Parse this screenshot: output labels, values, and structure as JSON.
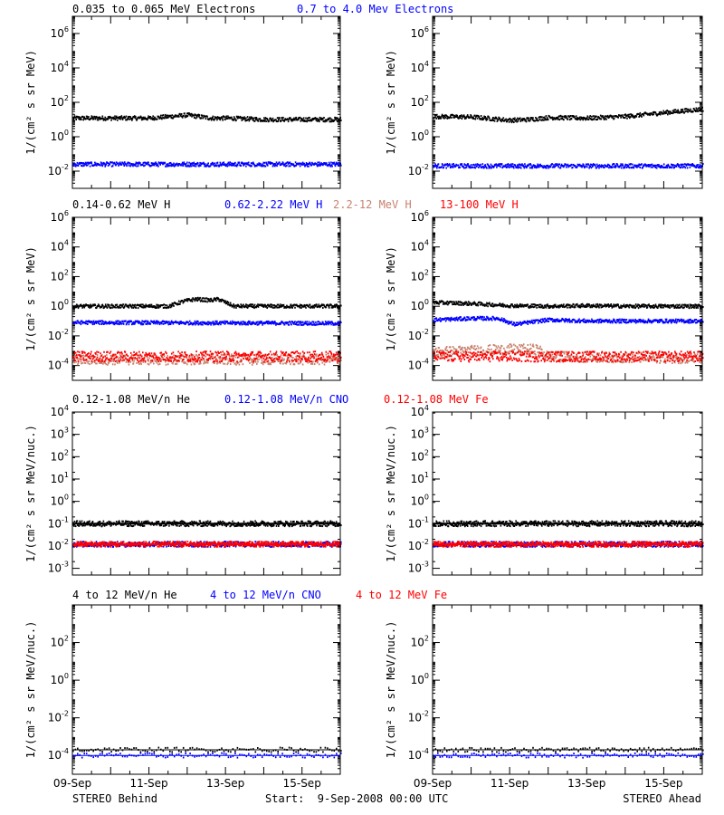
{
  "colors": {
    "black": "#000000",
    "blue": "#0000ff",
    "red": "#ff0000",
    "tan": "#c8826e"
  },
  "footer": {
    "left": "STEREO Behind",
    "center": "Start:  9-Sep-2008 00:00 UTC",
    "right": "STEREO Ahead"
  },
  "x_axis": {
    "range_days": [
      0,
      7
    ],
    "ticks": [
      0,
      2,
      4,
      6
    ],
    "tick_labels": [
      "09-Sep",
      "11-Sep",
      "13-Sep",
      "15-Sep"
    ]
  },
  "rows": [
    {
      "titles": [
        {
          "text": "0.035 to 0.065 MeV Electrons",
          "color": "#000000"
        },
        {
          "text": "0.7 to 4.0 Mev Electrons",
          "color": "#0000ff"
        }
      ],
      "ylabel": "1/(cm² s sr MeV)",
      "ylim_exp": [
        -3,
        7
      ],
      "yticks": [
        {
          "m": "10",
          "e": "-2"
        },
        {
          "m": "10",
          "e": "0"
        },
        {
          "m": "10",
          "e": "2"
        },
        {
          "m": "10",
          "e": "4"
        },
        {
          "m": "10",
          "e": "6"
        }
      ]
    },
    {
      "titles": [
        {
          "text": "0.14-0.62 MeV H",
          "color": "#000000"
        },
        {
          "text": "0.62-2.22 MeV H",
          "color": "#0000ff"
        },
        {
          "text": "2.2-12 MeV H",
          "color": "#c8826e"
        },
        {
          "text": "13-100 MeV H",
          "color": "#ff0000"
        }
      ],
      "ylabel": "1/(cm² s sr MeV)",
      "ylim_exp": [
        -5,
        6
      ],
      "yticks": [
        {
          "m": "10",
          "e": "-4"
        },
        {
          "m": "10",
          "e": "-2"
        },
        {
          "m": "10",
          "e": "0"
        },
        {
          "m": "10",
          "e": "2"
        },
        {
          "m": "10",
          "e": "4"
        },
        {
          "m": "10",
          "e": "6"
        }
      ]
    },
    {
      "titles": [
        {
          "text": "0.12-1.08 MeV/n He",
          "color": "#000000"
        },
        {
          "text": "0.12-1.08 MeV/n CNO",
          "color": "#0000ff"
        },
        {
          "text": "0.12-1.08 MeV Fe",
          "color": "#ff0000"
        }
      ],
      "ylabel": "1/(cm² s sr MeV/nuc.)",
      "ylim_exp": [
        -3.3,
        4
      ],
      "yticks": [
        {
          "m": "10",
          "e": "-3"
        },
        {
          "m": "10",
          "e": "-2"
        },
        {
          "m": "10",
          "e": "-1"
        },
        {
          "m": "10",
          "e": "0"
        },
        {
          "m": "10",
          "e": "1"
        },
        {
          "m": "10",
          "e": "2"
        },
        {
          "m": "10",
          "e": "3"
        },
        {
          "m": "10",
          "e": "4"
        }
      ]
    },
    {
      "titles": [
        {
          "text": "4 to 12 MeV/n He",
          "color": "#000000"
        },
        {
          "text": "4 to 12 MeV/n CNO",
          "color": "#0000ff"
        },
        {
          "text": "4 to 12 MeV Fe",
          "color": "#ff0000"
        }
      ],
      "ylabel": "1/(cm² s sr MeV/nuc.)",
      "ylim_exp": [
        -5,
        4
      ],
      "yticks": [
        {
          "m": "10",
          "e": "-4"
        },
        {
          "m": "10",
          "e": "-2"
        },
        {
          "m": "10",
          "e": "0"
        },
        {
          "m": "10",
          "e": "2"
        }
      ]
    }
  ],
  "chart_data": [
    {
      "type": "scatter",
      "panel": "electrons",
      "spacecraft": "STEREO Behind",
      "y_scale": "log",
      "series": [
        {
          "name": "0.035 to 0.065 MeV Electrons",
          "color": "#000000",
          "x": [
            0,
            1,
            2,
            3,
            3.6,
            4,
            5,
            6,
            7
          ],
          "y": [
            12,
            12,
            12,
            18,
            12,
            12,
            10,
            10,
            10
          ]
        },
        {
          "name": "0.7 to 4.0 Mev Electrons",
          "color": "#0000ff",
          "x": [
            0,
            7
          ],
          "y": [
            0.025,
            0.025
          ]
        }
      ]
    },
    {
      "type": "scatter",
      "panel": "electrons",
      "spacecraft": "STEREO Ahead",
      "y_scale": "log",
      "series": [
        {
          "name": "0.035 to 0.065 MeV Electrons",
          "color": "#000000",
          "x": [
            0,
            1,
            2,
            2.5,
            3,
            4,
            5,
            6,
            7
          ],
          "y": [
            15,
            14,
            9,
            10,
            13,
            12,
            15,
            25,
            40
          ]
        },
        {
          "name": "0.7 to 4.0 Mev Electrons",
          "color": "#0000ff",
          "x": [
            0,
            7
          ],
          "y": [
            0.02,
            0.02
          ]
        }
      ]
    },
    {
      "type": "scatter",
      "panel": "protons",
      "spacecraft": "STEREO Behind",
      "y_scale": "log",
      "series": [
        {
          "name": "0.14-0.62 MeV H",
          "color": "#000000",
          "x": [
            0,
            2.5,
            2.9,
            3.2,
            3.6,
            3.8,
            4.2,
            5,
            7
          ],
          "y": [
            1,
            1,
            2.2,
            3,
            2.5,
            3,
            1,
            1,
            1
          ]
        },
        {
          "name": "0.62-2.22 MeV H",
          "color": "#0000ff",
          "x": [
            0,
            7
          ],
          "y": [
            0.08,
            0.07
          ]
        },
        {
          "name": "2.2-12 MeV H",
          "color": "#c8826e",
          "x": [
            0,
            7
          ],
          "y": [
            0.00025,
            0.00025
          ]
        },
        {
          "name": "13-100 MeV H",
          "color": "#ff0000",
          "x": [
            0,
            7
          ],
          "y": [
            0.0004,
            0.0004
          ]
        }
      ]
    },
    {
      "type": "scatter",
      "panel": "protons",
      "spacecraft": "STEREO Ahead",
      "y_scale": "log",
      "series": [
        {
          "name": "0.14-0.62 MeV H",
          "color": "#000000",
          "x": [
            0,
            1,
            2,
            3,
            4,
            5,
            6,
            7
          ],
          "y": [
            1.8,
            1.5,
            1.1,
            1,
            1.1,
            1,
            1,
            1
          ]
        },
        {
          "name": "0.62-2.22 MeV H",
          "color": "#0000ff",
          "x": [
            0,
            1,
            1.7,
            2.1,
            3,
            4,
            5,
            7
          ],
          "y": [
            0.12,
            0.15,
            0.15,
            0.06,
            0.12,
            0.1,
            0.1,
            0.1
          ]
        },
        {
          "name": "2.2-12 MeV H",
          "color": "#c8826e",
          "x": [
            0,
            1,
            2,
            2.7,
            3,
            7
          ],
          "y": [
            0.0008,
            0.001,
            0.0012,
            0.0012,
            0.0004,
            0.0003
          ]
        },
        {
          "name": "13-100 MeV H",
          "color": "#ff0000",
          "x": [
            0,
            7
          ],
          "y": [
            0.0004,
            0.0004
          ]
        }
      ]
    },
    {
      "type": "scatter",
      "panel": "low-energy ions",
      "spacecraft": "STEREO Behind",
      "y_scale": "log",
      "series": [
        {
          "name": "0.12-1.08 MeV/n He",
          "color": "#000000",
          "x": [
            0,
            7
          ],
          "y": [
            0.1,
            0.1
          ]
        },
        {
          "name": "0.12-1.08 MeV/n CNO",
          "color": "#0000ff",
          "x": [
            0,
            7
          ],
          "y": [
            0.012,
            0.012
          ]
        },
        {
          "name": "0.12-1.08 MeV Fe",
          "color": "#ff0000",
          "x": [
            0,
            7
          ],
          "y": [
            0.012,
            0.012
          ]
        }
      ]
    },
    {
      "type": "scatter",
      "panel": "low-energy ions",
      "spacecraft": "STEREO Ahead",
      "y_scale": "log",
      "series": [
        {
          "name": "0.12-1.08 MeV/n He",
          "color": "#000000",
          "x": [
            0,
            7
          ],
          "y": [
            0.1,
            0.1
          ]
        },
        {
          "name": "0.12-1.08 MeV/n CNO",
          "color": "#0000ff",
          "x": [
            0,
            7
          ],
          "y": [
            0.012,
            0.012
          ]
        },
        {
          "name": "0.12-1.08 MeV Fe",
          "color": "#ff0000",
          "x": [
            0,
            7
          ],
          "y": [
            0.012,
            0.012
          ]
        }
      ]
    },
    {
      "type": "scatter",
      "panel": "high-energy ions",
      "spacecraft": "STEREO Behind",
      "y_scale": "log",
      "series": [
        {
          "name": "4 to 12 MeV/n He",
          "color": "#000000",
          "x": [
            0,
            7
          ],
          "y": [
            0.0002,
            0.0002
          ]
        },
        {
          "name": "4 to 12 MeV/n CNO",
          "color": "#0000ff",
          "x": [
            0,
            7
          ],
          "y": [
            0.0001,
            0.0001
          ]
        },
        {
          "name": "4 to 12 MeV Fe",
          "color": "#ff0000",
          "x": [],
          "y": []
        }
      ]
    },
    {
      "type": "scatter",
      "panel": "high-energy ions",
      "spacecraft": "STEREO Ahead",
      "y_scale": "log",
      "series": [
        {
          "name": "4 to 12 MeV/n He",
          "color": "#000000",
          "x": [
            0,
            7
          ],
          "y": [
            0.0002,
            0.0002
          ]
        },
        {
          "name": "4 to 12 MeV/n CNO",
          "color": "#0000ff",
          "x": [
            0,
            7
          ],
          "y": [
            0.0001,
            0.0001
          ]
        },
        {
          "name": "4 to 12 MeV Fe",
          "color": "#ff0000",
          "x": [],
          "y": []
        }
      ]
    }
  ]
}
